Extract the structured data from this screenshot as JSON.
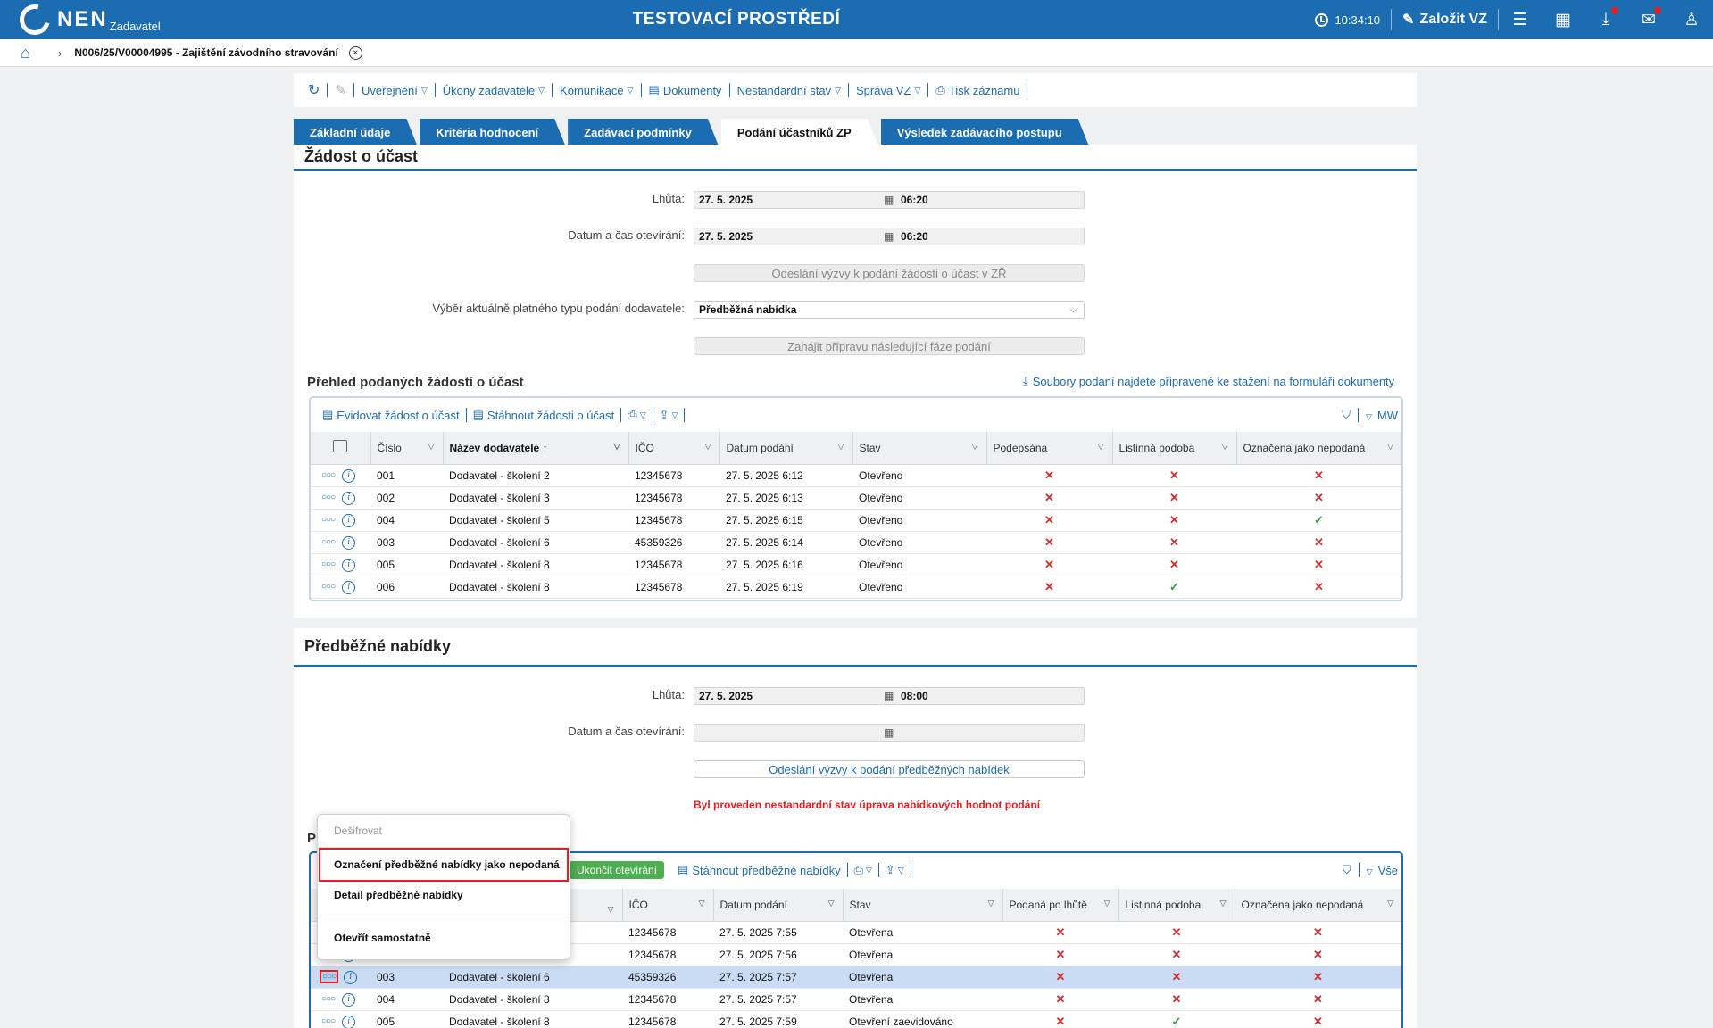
{
  "header": {
    "logo_text": "NEN",
    "logo_sub": "Zadavatel",
    "env_title": "TESTOVACÍ PROSTŘEDÍ",
    "clock": "10:34:10",
    "create_label": "Založit VZ"
  },
  "breadcrumb": {
    "title": "N006/25/V00004995 - Zajištění závodního stravování"
  },
  "toolbar": {
    "items": [
      "Uveřejnění",
      "Úkony zadavatele",
      "Komunikace",
      "Dokumenty",
      "Nestandardní stav",
      "Správa VZ",
      "Tisk záznamu"
    ]
  },
  "tabs": [
    "Základní údaje",
    "Kritéria hodnocení",
    "Zadávací podmínky",
    "Podání účastníků ZP",
    "Výsledek zadávacího postupu"
  ],
  "section1": {
    "title": "Žádost o účast",
    "lhuta_label": "Lhůta:",
    "lhuta_date": "27. 5. 2025",
    "lhuta_time": "06:20",
    "otevirani_label": "Datum a čas otevírání:",
    "otevirani_date": "27. 5. 2025",
    "otevirani_time": "06:20",
    "send_button": "Odeslání výzvy k podání žádosti o účast v ZŘ",
    "type_label": "Výběr aktuálně platného typu podání dodavatele:",
    "type_value": "Předběžná nabídka",
    "prepare_button": "Zahájit přípravu následující fáze podání",
    "overview_title": "Přehled podaných žádostí o účast",
    "download_link": "Soubory podaní najdete připravené ke stažení na formuláři dokumenty",
    "grid_toolbar": [
      "Evidovat žádost o účast",
      "Stáhnout žádosti o účast"
    ],
    "grid_right": "MW",
    "columns": [
      "Číslo",
      "Název dodavatele",
      "IČO",
      "Datum podání",
      "Stav",
      "Podepsána",
      "Listinná podoba",
      "Označena jako nepodaná"
    ],
    "rows": [
      {
        "cislo": "001",
        "nazev": "Dodavatel - školení 2",
        "ico": "12345678",
        "datum": "27. 5. 2025 6:12",
        "stav": "Otevřeno",
        "podepsana": "x",
        "listinna": "x",
        "nepodana": "x"
      },
      {
        "cislo": "002",
        "nazev": "Dodavatel - školení 3",
        "ico": "12345678",
        "datum": "27. 5. 2025 6:13",
        "stav": "Otevřeno",
        "podepsana": "x",
        "listinna": "x",
        "nepodana": "x"
      },
      {
        "cislo": "004",
        "nazev": "Dodavatel - školení 5",
        "ico": "12345678",
        "datum": "27. 5. 2025 6:15",
        "stav": "Otevřeno",
        "podepsana": "x",
        "listinna": "x",
        "nepodana": "ok"
      },
      {
        "cislo": "003",
        "nazev": "Dodavatel - školení 6",
        "ico": "45359326",
        "datum": "27. 5. 2025 6:14",
        "stav": "Otevřeno",
        "podepsana": "x",
        "listinna": "x",
        "nepodana": "x"
      },
      {
        "cislo": "005",
        "nazev": "Dodavatel - školení 8",
        "ico": "12345678",
        "datum": "27. 5. 2025 6:16",
        "stav": "Otevřeno",
        "podepsana": "x",
        "listinna": "x",
        "nepodana": "x"
      },
      {
        "cislo": "006",
        "nazev": "Dodavatel - školení 8",
        "ico": "12345678",
        "datum": "27. 5. 2025 6:19",
        "stav": "Otevřeno",
        "podepsana": "x",
        "listinna": "ok",
        "nepodana": "x"
      }
    ]
  },
  "section2": {
    "title": "Předběžné nabídky",
    "lhuta_label": "Lhůta:",
    "lhuta_date": "27. 5. 2025",
    "lhuta_time": "08:00",
    "otevirani_label": "Datum a čas otevírání:",
    "send_button": "Odeslání výzvy k podání předběžných nabídek",
    "warning": "Byl proveden nestandardní stav úprava nabídkových hodnot podání",
    "overview_initial": "P",
    "grid_toolbar_green": "Ukončit otevírání",
    "grid_toolbar": [
      "Stáhnout předběžné nabídky"
    ],
    "grid_right": "Vše",
    "columns": [
      "IČO",
      "Datum podání",
      "Stav",
      "Podaná po lhůtě",
      "Listinná podoba",
      "Označena jako nepodaná"
    ],
    "rows": [
      {
        "cislo": "",
        "nazev": "",
        "ico": "12345678",
        "datum": "27. 5. 2025 7:55",
        "stav": "Otevřena",
        "po_lhute": "x",
        "listinna": "x",
        "nepodana": "x"
      },
      {
        "cislo": "",
        "nazev": "",
        "ico": "12345678",
        "datum": "27. 5. 2025 7:56",
        "stav": "Otevřena",
        "po_lhute": "x",
        "listinna": "x",
        "nepodana": "x"
      },
      {
        "cislo": "003",
        "nazev": "Dodavatel - školení 6",
        "ico": "45359326",
        "datum": "27. 5. 2025 7:57",
        "stav": "Otevřena",
        "po_lhute": "x",
        "listinna": "x",
        "nepodana": "x"
      },
      {
        "cislo": "004",
        "nazev": "Dodavatel - školení 8",
        "ico": "12345678",
        "datum": "27. 5. 2025 7:57",
        "stav": "Otevřena",
        "po_lhute": "x",
        "listinna": "x",
        "nepodana": "x"
      },
      {
        "cislo": "005",
        "nazev": "Dodavatel - školení 8",
        "ico": "12345678",
        "datum": "27. 5. 2025 7:59",
        "stav": "Otevření zaevidováno",
        "po_lhute": "x",
        "listinna": "ok",
        "nepodana": "x"
      }
    ]
  },
  "context_menu": {
    "items": [
      "Dešifrovat",
      "Označení předběžné nabídky jako nepodaná",
      "Detail předběžné nabídky",
      "Otevřít samostatně"
    ]
  },
  "colors": {
    "brand": "#1b6cb0",
    "error": "#e31e24",
    "ok": "#2e9e3e",
    "green_button": "#4caf50"
  }
}
